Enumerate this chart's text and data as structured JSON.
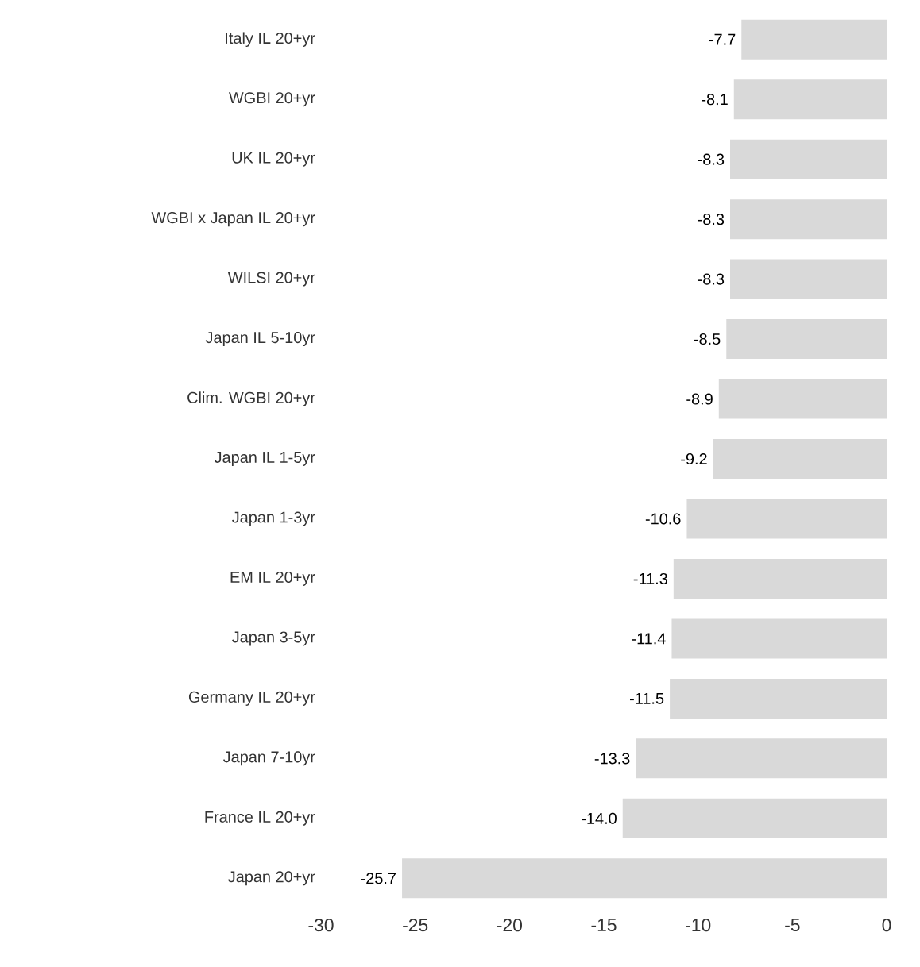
{
  "chart_data": {
    "type": "bar",
    "orientation": "horizontal",
    "categories": [
      "Italy IL 20+yr",
      "WGBI 20+yr",
      "UK IL 20+yr",
      "WGBI x Japan IL 20+yr",
      "WILSI 20+yr",
      "Japan IL 5-10yr",
      "Clim. WGBI 20+yr",
      "Japan IL 1-5yr",
      "Japan 1-3yr",
      "EM IL 20+yr",
      "Japan 3-5yr",
      "Germany IL 20+yr",
      "Japan 7-10yr",
      "France IL 20+yr",
      "Japan 20+yr"
    ],
    "values": [
      -7.7,
      -8.1,
      -8.3,
      -8.3,
      -8.3,
      -8.5,
      -8.9,
      -9.2,
      -10.6,
      -11.3,
      -11.4,
      -11.5,
      -13.3,
      -14.0,
      -25.7
    ],
    "value_labels": [
      "-7.7",
      "-8.1",
      "-8.3",
      "-8.3",
      "-8.3",
      "-8.5",
      "-8.9",
      "-9.2",
      "-10.6",
      "-11.3",
      "-11.4",
      "-11.5",
      "-13.3",
      "-14.0",
      "-25.7"
    ],
    "color": "#d9d9d9",
    "xlim": [
      -30,
      0
    ],
    "xticks": [
      -30,
      -25,
      -20,
      -15,
      -10,
      -5,
      0
    ],
    "grid": false
  }
}
